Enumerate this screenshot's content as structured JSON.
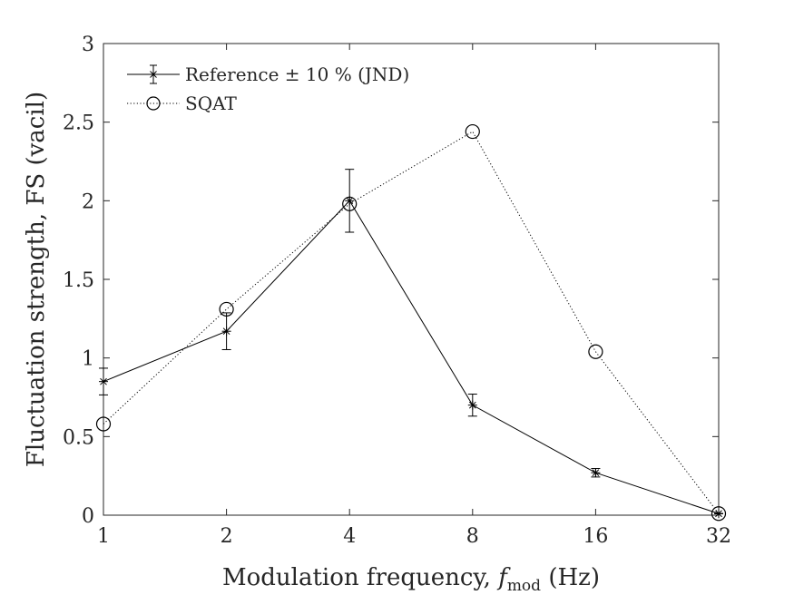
{
  "chart_data": {
    "type": "line",
    "title": "",
    "xlabel_main": "Modulation frequency, ",
    "xlabel_var": "f",
    "xlabel_sub": "mod",
    "xlabel_unit": " (Hz)",
    "ylabel": "Fluctuation strength, FS (vacil)",
    "x_scale": "log2",
    "x_ticks": [
      1,
      2,
      4,
      8,
      16,
      32
    ],
    "x_tick_labels": [
      "1",
      "2",
      "4",
      "8",
      "16",
      "32"
    ],
    "y_ticks": [
      0,
      0.5,
      1,
      1.5,
      2,
      2.5,
      3
    ],
    "y_tick_labels": [
      "0",
      "0.5",
      "1",
      "1.5",
      "2",
      "2.5",
      "3"
    ],
    "xlim": [
      1,
      32
    ],
    "ylim": [
      0,
      3
    ],
    "grid": false,
    "legend_position": "top-left",
    "series": [
      {
        "name": "Reference ± 10 % (JND)",
        "style": "solid line, asterisk markers, error bars",
        "x": [
          1,
          2,
          4,
          8,
          16,
          32
        ],
        "y": [
          0.85,
          1.17,
          2.0,
          0.7,
          0.27,
          0.01
        ],
        "err": [
          0.085,
          0.117,
          0.2,
          0.07,
          0.027,
          0.001
        ]
      },
      {
        "name": "SQAT",
        "style": "dotted line, circle markers",
        "x": [
          1,
          2,
          4,
          8,
          16,
          32
        ],
        "y": [
          0.58,
          1.31,
          1.98,
          2.44,
          1.04,
          0.01
        ]
      }
    ]
  }
}
